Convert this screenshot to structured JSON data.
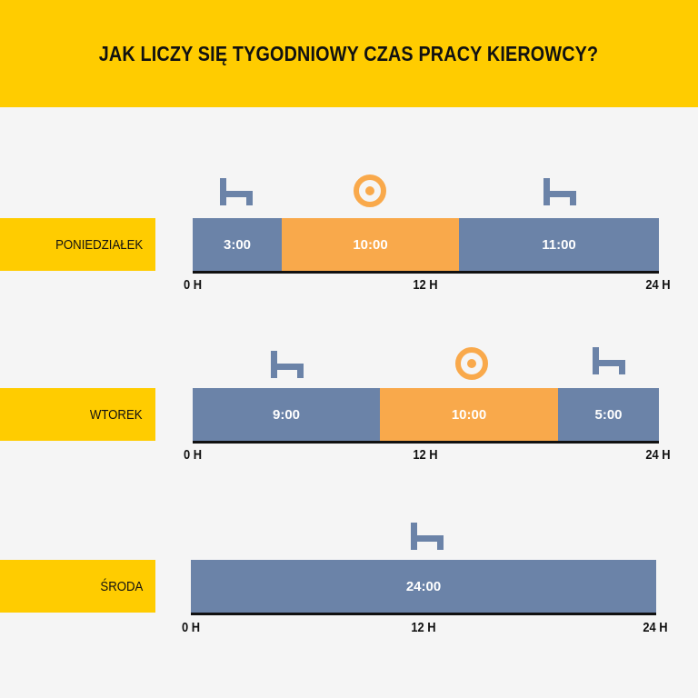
{
  "title": "JAK LICZY SIĘ TYGODNIOWY CZAS PRACY KIEROWCY?",
  "colors": {
    "rest": "#6b83a8",
    "work": "#f9a94b",
    "label_bg": "#ffcc00"
  },
  "days": [
    {
      "name": "PONIEDZIAŁEK",
      "segments": [
        {
          "type": "rest",
          "label": "3:00",
          "icon": "bed-icon"
        },
        {
          "type": "work",
          "label": "10:00",
          "icon": "steering-wheel-icon"
        },
        {
          "type": "rest",
          "label": "11:00",
          "icon": "bed-icon"
        }
      ],
      "ticks": [
        "0 H",
        "12 H",
        "24 H"
      ]
    },
    {
      "name": "WTOREK",
      "segments": [
        {
          "type": "rest",
          "label": "9:00",
          "icon": "bed-icon"
        },
        {
          "type": "work",
          "label": "10:00",
          "icon": "steering-wheel-icon"
        },
        {
          "type": "rest",
          "label": "5:00",
          "icon": "bed-icon"
        }
      ],
      "ticks": [
        "0 H",
        "12 H",
        "24 H"
      ]
    },
    {
      "name": "ŚRODA",
      "segments": [
        {
          "type": "rest",
          "label": "24:00",
          "icon": "bed-icon"
        }
      ],
      "ticks": [
        "0 H",
        "12 H",
        "24 H"
      ]
    }
  ]
}
